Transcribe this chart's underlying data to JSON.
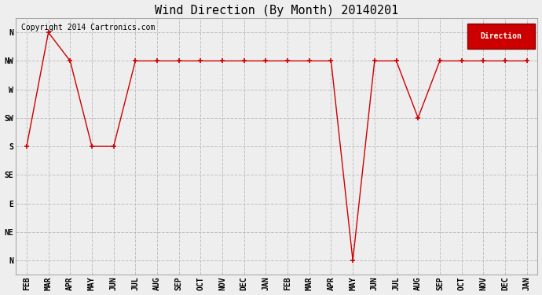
{
  "title": "Wind Direction (By Month) 20140201",
  "copyright": "Copyright 2014 Cartronics.com",
  "legend_label": "Direction",
  "legend_bg": "#cc0000",
  "legend_fg": "#ffffff",
  "x_labels": [
    "FEB",
    "MAR",
    "APR",
    "MAY",
    "JUN",
    "JUL",
    "AUG",
    "SEP",
    "OCT",
    "NOV",
    "DEC",
    "JAN",
    "FEB",
    "MAR",
    "APR",
    "MAY",
    "JUN",
    "JUL",
    "AUG",
    "SEP",
    "OCT",
    "NOV",
    "DEC",
    "JAN"
  ],
  "y_labels": [
    "N",
    "NE",
    "E",
    "SE",
    "S",
    "SW",
    "W",
    "NW",
    "N"
  ],
  "y_tick_positions": [
    0,
    1,
    2,
    3,
    4,
    5,
    6,
    7,
    8
  ],
  "data_points": [
    4,
    8,
    7,
    4,
    4,
    7,
    7,
    7,
    7,
    7,
    7,
    7,
    7,
    7,
    7,
    0,
    7,
    7,
    5,
    7,
    7,
    7,
    7,
    7
  ],
  "line_color": "#cc0000",
  "marker": "+",
  "marker_size": 5,
  "marker_edge_width": 1.2,
  "line_width": 1.0,
  "bg_color": "#eeeeee",
  "grid_color": "#bbbbbb",
  "title_fontsize": 11,
  "axis_fontsize": 7,
  "copyright_fontsize": 7
}
